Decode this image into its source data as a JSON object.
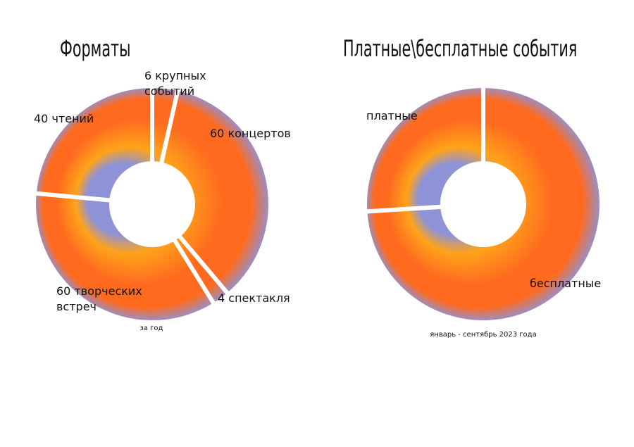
{
  "chart_data": [
    {
      "type": "donut",
      "title": "Форматы",
      "subtitle": "за год",
      "values": [
        6,
        60,
        4,
        60,
        40
      ],
      "value_labels": [
        "6 крупных событий",
        "60 концертов",
        "4 спектакля",
        "60 творческих встреч",
        "40 чтений"
      ],
      "colors": [
        "#ffa31a",
        "#ff6a1f",
        "#8e93d8"
      ]
    },
    {
      "type": "donut",
      "title": "Платные\\бесплатные события",
      "subtitle": "январь - сентябрь 2023 года",
      "categories": [
        "бесплатные",
        "платные"
      ],
      "values": [
        74,
        26
      ],
      "colors": [
        "#ffa31a",
        "#ff6a1f",
        "#8e93d8"
      ]
    }
  ]
}
